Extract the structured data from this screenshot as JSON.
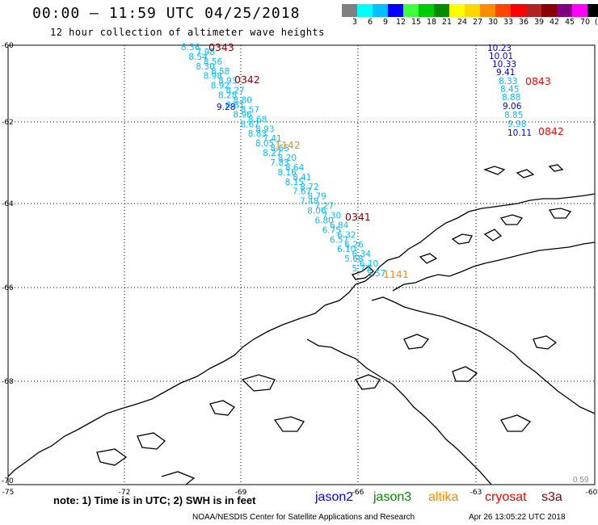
{
  "header": {
    "title": "00:00 – 11:59 UTC 04/25/2018",
    "subtitle": "12 hour collection of altimeter wave heights"
  },
  "scale": {
    "colors": [
      "#808080",
      "#00ffff",
      "#00bfff",
      "#0000ff",
      "#3fff3f",
      "#00cd00",
      "#008b00",
      "#ffff00",
      "#ffd700",
      "#ff8c00",
      "#ff4500",
      "#ff0000",
      "#b22222",
      "#8b0000",
      "#800080",
      "#ff00ff",
      "#000000"
    ],
    "labels": [
      "3",
      "6",
      "9",
      "12",
      "15",
      "18",
      "21",
      "24",
      "27",
      "30",
      "33",
      "36",
      "39",
      "42",
      "45",
      "70",
      "(ft)"
    ]
  },
  "axes": {
    "lat_labels": [
      "-60",
      "-62",
      "-64",
      "-66",
      "-68",
      "-70"
    ],
    "lon_labels": [
      "-75",
      "-72",
      "-69",
      "-66",
      "-63",
      "-60"
    ]
  },
  "tracks": {
    "pass_labels": [
      {
        "text": "0343",
        "color": "#8b0000"
      },
      {
        "text": "0342",
        "color": "#8b0000"
      },
      {
        "text": "1142",
        "color": "#ff8c00"
      },
      {
        "text": "0341",
        "color": "#8b0000"
      },
      {
        "text": "1141",
        "color": "#ff8c00"
      },
      {
        "text": "0843",
        "color": "#ff0000"
      },
      {
        "text": "0842",
        "color": "#ff0000"
      }
    ],
    "heights_west_cyan": [
      "8.36",
      "7.98",
      "8.54",
      "8.56",
      "8.30",
      "8.58",
      "8.98",
      "8.93",
      "8.92",
      "8.27",
      "8.28",
      "8.80",
      "8.81",
      "8.57",
      "8.96",
      "8.68",
      "8.67",
      "8.93",
      "8.83",
      "7.41",
      "8.05",
      "8.65",
      "8.27",
      "8.20",
      "7.83",
      "8.64",
      "8.16",
      "8.41",
      "8.15",
      "8.72",
      "7.67",
      "8.79",
      "7.48",
      "7.27",
      "8.06",
      "7.30",
      "6.80",
      "6.84",
      "6.75",
      "6.32",
      "6.57",
      "6.26",
      "6.10",
      "6.34",
      "5.68",
      "6.10",
      "5.77",
      "5.57"
    ],
    "heights_west_blue": [
      "9.28"
    ],
    "heights_east_blue": [
      "10.23",
      "10.01",
      "10.33",
      "9.41",
      "9.06",
      "10.11"
    ],
    "heights_east_cyan": [
      "8.33",
      "8.45",
      "8.88",
      "8.85",
      "9.98"
    ]
  },
  "notes": {
    "note": "note:  1) Time is in UTC;  2) SWH is in feet",
    "legend": [
      {
        "name": "jason2",
        "color": "#0000ff"
      },
      {
        "name": "jason3",
        "color": "#008b00"
      },
      {
        "name": "altika",
        "color": "#ff8c00"
      },
      {
        "name": "cryosat",
        "color": "#ff0000"
      },
      {
        "name": "s3a",
        "color": "#8b0000"
      }
    ],
    "footer_left": "NOAA/NESDIS Center for Satellite Applications and Research",
    "footer_right": "Apr 26 13:05:22 UTC 2018",
    "corner_value": "0.59"
  }
}
